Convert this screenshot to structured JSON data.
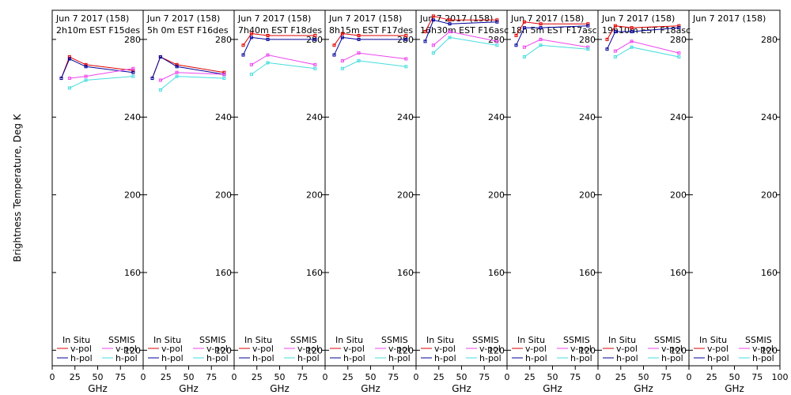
{
  "chart_data": {
    "type": "line",
    "ylabel": "Brightness Temperature, Deg K",
    "xlabel": "GHz",
    "xlim": [
      0,
      100
    ],
    "ylim": [
      112,
      295
    ],
    "xticks": [
      0,
      25,
      50,
      75,
      100
    ],
    "yticks": [
      120,
      160,
      200,
      240,
      280
    ],
    "colors": {
      "in_situ_v": "#dd0000",
      "in_situ_h": "#000099",
      "ssmis_v": "#ee44ee",
      "ssmis_h": "#44dddd"
    },
    "legend": {
      "in_situ_title": "In Situ",
      "ssmis_title": "SSMIS",
      "vpol": "v-pol",
      "hpol": "h-pol"
    },
    "panels": [
      {
        "date": "Jun 7 2017 (158)",
        "subtitle": "2h10m  EST F15des",
        "in_situ_v": {
          "x": [
            10,
            19,
            37,
            89
          ],
          "y": [
            260,
            271,
            267,
            264
          ]
        },
        "in_situ_h": {
          "x": [
            10,
            19,
            37,
            89
          ],
          "y": [
            260,
            270,
            266,
            263
          ]
        },
        "ssmis_v": {
          "x": [
            19,
            37,
            89
          ],
          "y": [
            260,
            261,
            265
          ]
        },
        "ssmis_h": {
          "x": [
            19,
            37,
            89
          ],
          "y": [
            255,
            259,
            261
          ]
        }
      },
      {
        "date": "Jun 7 2017 (158)",
        "subtitle": "5h 0m  EST F16des",
        "in_situ_v": {
          "x": [
            10,
            19,
            37,
            89
          ],
          "y": [
            260,
            271,
            267,
            263
          ]
        },
        "in_situ_h": {
          "x": [
            10,
            19,
            37,
            89
          ],
          "y": [
            260,
            271,
            266,
            262
          ]
        },
        "ssmis_v": {
          "x": [
            19,
            37,
            89
          ],
          "y": [
            259,
            263,
            262
          ]
        },
        "ssmis_h": {
          "x": [
            19,
            37,
            89
          ],
          "y": [
            254,
            261,
            260
          ]
        }
      },
      {
        "date": "Jun 7 2017 (158)",
        "subtitle": "7h40m  EST F18des",
        "in_situ_v": {
          "x": [
            10,
            19,
            37,
            89
          ],
          "y": [
            277,
            283,
            282,
            282
          ]
        },
        "in_situ_h": {
          "x": [
            10,
            19,
            37,
            89
          ],
          "y": [
            272,
            281,
            280,
            280
          ]
        },
        "ssmis_v": {
          "x": [
            19,
            37,
            89
          ],
          "y": [
            267,
            272,
            267
          ]
        },
        "ssmis_h": {
          "x": [
            19,
            37,
            89
          ],
          "y": [
            262,
            268,
            265
          ]
        }
      },
      {
        "date": "Jun 7 2017 (158)",
        "subtitle": "8h15m  EST F17des",
        "in_situ_v": {
          "x": [
            10,
            19,
            37,
            89
          ],
          "y": [
            277,
            283,
            282,
            282
          ]
        },
        "in_situ_h": {
          "x": [
            10,
            19,
            37,
            89
          ],
          "y": [
            272,
            281,
            280,
            280
          ]
        },
        "ssmis_v": {
          "x": [
            19,
            37,
            89
          ],
          "y": [
            269,
            273,
            270
          ]
        },
        "ssmis_h": {
          "x": [
            19,
            37,
            89
          ],
          "y": [
            265,
            269,
            266
          ]
        }
      },
      {
        "date": "Jun 7 2017 (158)",
        "subtitle": "16h30m  EST F16asc",
        "in_situ_v": {
          "x": [
            10,
            19,
            37,
            89
          ],
          "y": [
            284,
            292,
            290,
            290
          ]
        },
        "in_situ_h": {
          "x": [
            10,
            19,
            37,
            89
          ],
          "y": [
            279,
            290,
            288,
            289
          ]
        },
        "ssmis_v": {
          "x": [
            19,
            37,
            89
          ],
          "y": [
            277,
            284,
            279
          ]
        },
        "ssmis_h": {
          "x": [
            19,
            37,
            89
          ],
          "y": [
            273,
            281,
            277
          ]
        }
      },
      {
        "date": "Jun 7 2017 (158)",
        "subtitle": "18h 5m  EST F17asc",
        "in_situ_v": {
          "x": [
            10,
            19,
            37,
            89
          ],
          "y": [
            282,
            289,
            288,
            288
          ]
        },
        "in_situ_h": {
          "x": [
            10,
            19,
            37,
            89
          ],
          "y": [
            277,
            286,
            286,
            287
          ]
        },
        "ssmis_v": {
          "x": [
            19,
            37,
            89
          ],
          "y": [
            276,
            280,
            276
          ]
        },
        "ssmis_h": {
          "x": [
            19,
            37,
            89
          ],
          "y": [
            271,
            277,
            275
          ]
        }
      },
      {
        "date": "Jun 7 2017 (158)",
        "subtitle": "19h10m  EST F18asc",
        "in_situ_v": {
          "x": [
            10,
            19,
            37,
            89
          ],
          "y": [
            280,
            287,
            286,
            287
          ]
        },
        "in_situ_h": {
          "x": [
            10,
            19,
            37,
            89
          ],
          "y": [
            275,
            284,
            284,
            286
          ]
        },
        "ssmis_v": {
          "x": [
            19,
            37,
            89
          ],
          "y": [
            274,
            279,
            273
          ]
        },
        "ssmis_h": {
          "x": [
            19,
            37,
            89
          ],
          "y": [
            271,
            276,
            271
          ]
        }
      },
      {
        "date": "Jun 7 2017 (158)",
        "subtitle": "",
        "in_situ_v": {
          "x": [],
          "y": []
        },
        "in_situ_h": {
          "x": [],
          "y": []
        },
        "ssmis_v": {
          "x": [],
          "y": []
        },
        "ssmis_h": {
          "x": [],
          "y": []
        }
      }
    ]
  }
}
